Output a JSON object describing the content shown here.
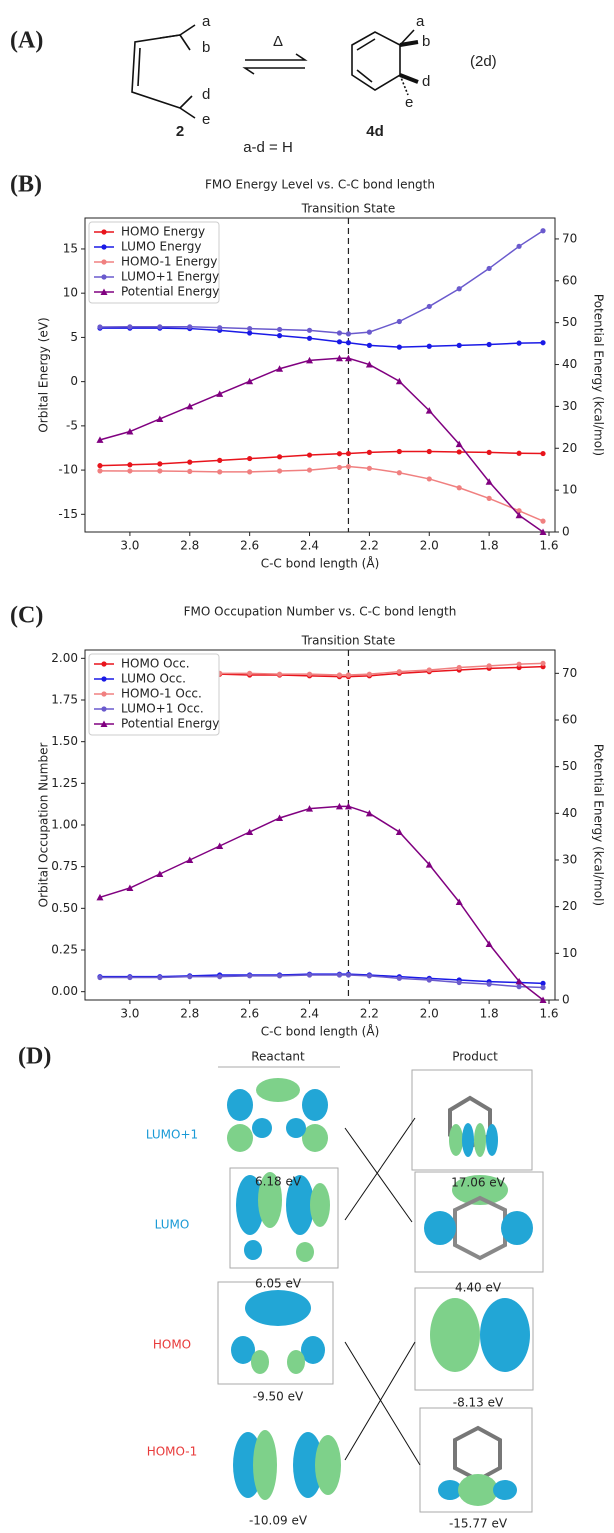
{
  "scheme": {
    "panel_label": "(A)",
    "reactant_subs": [
      "a",
      "b",
      "d",
      "e"
    ],
    "product_subs": [
      "a",
      "b",
      "d",
      "e"
    ],
    "arrow_label": "Δ",
    "reactant_name": "2",
    "product_name": "4d",
    "note": "a-d = H",
    "equation_label": "(2d)"
  },
  "panel_labels": [
    "(B)",
    "(C)",
    "(D)"
  ],
  "chart_data": [
    {
      "type": "line",
      "title": "FMO Energy Level vs. C-C bond length",
      "x_label": "C-C bond length (Å)",
      "y_label": "Orbital Energy (eV)",
      "y2_label": "Potential Energy (kcal/mol)",
      "vline": {
        "x": 2.27,
        "label": "Transition State"
      },
      "x": [
        3.1,
        3.0,
        2.9,
        2.8,
        2.7,
        2.6,
        2.5,
        2.4,
        2.3,
        2.27,
        2.2,
        2.1,
        2.0,
        1.9,
        1.8,
        1.7,
        1.62
      ],
      "xlim": [
        3.15,
        1.58
      ],
      "xticks": [
        {
          "value": 3.0,
          "label": "3.0"
        },
        2.8,
        2.6,
        2.4,
        2.2,
        {
          "value": 2.0,
          "label": "2.0"
        },
        1.8,
        1.6
      ],
      "ylim": [
        -17,
        18.5
      ],
      "yticks": [
        -15,
        -10,
        -5,
        0,
        5,
        10,
        15
      ],
      "y2lim": [
        0,
        75
      ],
      "y2ticks": [
        0,
        10,
        20,
        30,
        40,
        50,
        60,
        70
      ],
      "legend": "upper-left",
      "series": [
        {
          "name": "HOMO Energy",
          "color": "#e8141c",
          "marker": "circle",
          "values": [
            -9.5,
            -9.4,
            -9.3,
            -9.1,
            -8.9,
            -8.7,
            -8.5,
            -8.3,
            -8.15,
            -8.13,
            -8.0,
            -7.9,
            -7.9,
            -7.95,
            -8.0,
            -8.1,
            -8.13
          ]
        },
        {
          "name": "LUMO Energy",
          "color": "#1a1ae6",
          "marker": "circle",
          "values": [
            6.05,
            6.05,
            6.05,
            6.0,
            5.8,
            5.5,
            5.2,
            4.9,
            4.5,
            4.4,
            4.1,
            3.9,
            4.0,
            4.1,
            4.2,
            4.35,
            4.4
          ]
        },
        {
          "name": "HOMO-1 Energy",
          "color": "#f08080",
          "marker": "circle",
          "values": [
            -10.09,
            -10.1,
            -10.1,
            -10.15,
            -10.2,
            -10.2,
            -10.1,
            -10.0,
            -9.7,
            -9.6,
            -9.8,
            -10.3,
            -11.0,
            -12.0,
            -13.2,
            -14.6,
            -15.77
          ]
        },
        {
          "name": "LUMO+1 Energy",
          "color": "#6a5acd",
          "marker": "circle",
          "values": [
            6.18,
            6.2,
            6.2,
            6.2,
            6.1,
            6.0,
            5.9,
            5.8,
            5.5,
            5.4,
            5.6,
            6.8,
            8.5,
            10.5,
            12.8,
            15.3,
            17.06
          ]
        },
        {
          "name": "Potential Energy",
          "color": "#800080",
          "marker": "triangle",
          "axis": "y2",
          "values": [
            22,
            24,
            27,
            30,
            33,
            36,
            39,
            41,
            41.5,
            41.5,
            40,
            36,
            29,
            21,
            12,
            4,
            0
          ]
        }
      ]
    },
    {
      "type": "line",
      "title": "FMO Occupation Number vs. C-C bond length",
      "x_label": "C-C bond length (Å)",
      "y_label": "Orbital Occupation Number",
      "y2_label": "Potential Energy (kcal/mol)",
      "vline": {
        "x": 2.27,
        "label": "Transition State"
      },
      "x": [
        3.1,
        3.0,
        2.9,
        2.8,
        2.7,
        2.6,
        2.5,
        2.4,
        2.3,
        2.27,
        2.2,
        2.1,
        2.0,
        1.9,
        1.8,
        1.7,
        1.62
      ],
      "xlim": [
        3.15,
        1.58
      ],
      "xticks": [
        {
          "value": 3.0,
          "label": "3.0"
        },
        2.8,
        2.6,
        2.4,
        2.2,
        {
          "value": 2.0,
          "label": "2.0"
        },
        1.8,
        1.6
      ],
      "ylim": [
        -0.05,
        2.05
      ],
      "yticks": [
        {
          "value": 0,
          "label": "0.00"
        },
        0.25,
        {
          "value": 0.5,
          "label": "0.50"
        },
        0.75,
        {
          "value": 1,
          "label": "1.00"
        },
        1.25,
        {
          "value": 1.5,
          "label": "1.50"
        },
        1.75,
        {
          "value": 2,
          "label": "2.00"
        }
      ],
      "y2lim": [
        0,
        75
      ],
      "y2ticks": [
        0,
        10,
        20,
        30,
        40,
        50,
        60,
        70
      ],
      "legend": "upper-left",
      "series": [
        {
          "name": "HOMO Occ.",
          "color": "#e8141c",
          "marker": "circle",
          "values": [
            1.91,
            1.91,
            1.91,
            1.91,
            1.905,
            1.9,
            1.9,
            1.895,
            1.89,
            1.89,
            1.895,
            1.91,
            1.92,
            1.93,
            1.94,
            1.945,
            1.95
          ]
        },
        {
          "name": "LUMO Occ.",
          "color": "#1a1ae6",
          "marker": "circle",
          "values": [
            0.09,
            0.09,
            0.09,
            0.095,
            0.1,
            0.1,
            0.1,
            0.105,
            0.105,
            0.105,
            0.1,
            0.09,
            0.08,
            0.07,
            0.06,
            0.055,
            0.05
          ]
        },
        {
          "name": "HOMO-1 Occ.",
          "color": "#f08080",
          "marker": "circle",
          "values": [
            1.92,
            1.92,
            1.92,
            1.915,
            1.91,
            1.91,
            1.905,
            1.905,
            1.9,
            1.9,
            1.905,
            1.92,
            1.93,
            1.945,
            1.955,
            1.965,
            1.97
          ]
        },
        {
          "name": "LUMO+1 Occ.",
          "color": "#6a5acd",
          "marker": "circle",
          "values": [
            0.085,
            0.085,
            0.085,
            0.09,
            0.09,
            0.095,
            0.095,
            0.1,
            0.1,
            0.1,
            0.095,
            0.08,
            0.07,
            0.055,
            0.045,
            0.03,
            0.025
          ]
        },
        {
          "name": "Potential Energy",
          "color": "#800080",
          "marker": "triangle",
          "axis": "y2",
          "values": [
            22,
            24,
            27,
            30,
            33,
            36,
            39,
            41,
            41.5,
            41.5,
            40,
            36,
            29,
            21,
            12,
            4,
            0
          ]
        }
      ]
    }
  ],
  "orbitals": {
    "reactant_header": "Reactant",
    "product_header": "Product",
    "rows": [
      "LUMO+1",
      "LUMO",
      "HOMO",
      "HOMO-1"
    ],
    "reactant_energies": [
      "6.18 eV",
      "6.05 eV",
      "-9.50 eV",
      "-10.09 eV"
    ],
    "product_energies": [
      "17.06 eV",
      "4.40 eV",
      "-8.13 eV",
      "-15.77 eV"
    ]
  }
}
